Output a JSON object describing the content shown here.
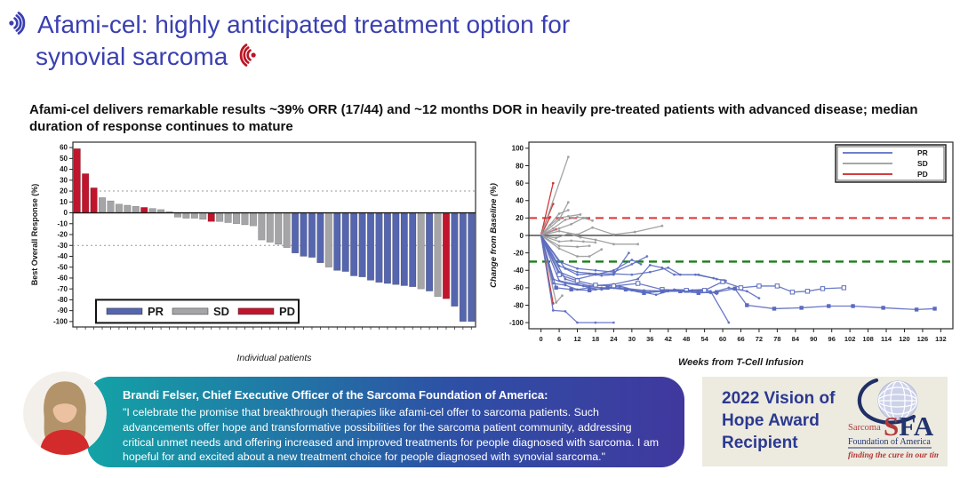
{
  "header": {
    "title_line1": "Afami-cel: highly anticipated treatment option for",
    "title_line2": "synovial sarcoma"
  },
  "icons": {
    "title_start": "sound-wave-open",
    "title_end": "sound-wave-close"
  },
  "subtitle": "Afami-cel delivers remarkable results ~39% ORR (17/44) and ~12 months DOR in heavily pre-treated patients with advanced disease; median duration of response continues to mature",
  "chart_data": [
    {
      "type": "bar",
      "title": "",
      "ylabel": "Best Overall Response (%)",
      "xlabel": "Individual patients",
      "ylim": [
        -105,
        65
      ],
      "yticks": [
        60,
        50,
        40,
        30,
        20,
        10,
        0,
        -10,
        -20,
        -30,
        -40,
        -50,
        -60,
        -70,
        -80,
        -90,
        -100
      ],
      "ref_lines": [
        {
          "y": 20,
          "color": "#9a9a9a",
          "dash": "2,3",
          "width": 1
        },
        {
          "y": -30,
          "color": "#9a9a9a",
          "dash": "2,3",
          "width": 1
        }
      ],
      "zero_line": {
        "color": "#1a1a1a",
        "width": 1.4
      },
      "colors": {
        "PR": "#5565AE",
        "SD": "#A5A5A7",
        "PD": "#C0152D"
      },
      "legend": [
        {
          "label": "PR",
          "group": "PR"
        },
        {
          "label": "SD",
          "group": "SD"
        },
        {
          "label": "PD",
          "group": "PD"
        }
      ],
      "bars": {
        "values": [
          59,
          36,
          23,
          14,
          11,
          8,
          7,
          6,
          5,
          4,
          3,
          1,
          -4,
          -5,
          -5,
          -6,
          -8,
          -8,
          -9,
          -10,
          -11,
          -12,
          -25,
          -27,
          -29,
          -32,
          -37,
          -40,
          -41,
          -46,
          -50,
          -53,
          -54,
          -58,
          -59,
          -62,
          -64,
          -65,
          -66,
          -67,
          -68,
          -70,
          -72,
          -77,
          -79,
          -86,
          -100,
          -100
        ],
        "groups": [
          "PD",
          "PD",
          "PD",
          "SD",
          "SD",
          "SD",
          "SD",
          "SD",
          "PD",
          "SD",
          "SD",
          "SD",
          "SD",
          "SD",
          "SD",
          "SD",
          "PD",
          "SD",
          "SD",
          "SD",
          "SD",
          "SD",
          "SD",
          "SD",
          "SD",
          "SD",
          "PR",
          "PR",
          "PR",
          "PR",
          "SD",
          "PR",
          "PR",
          "PR",
          "PR",
          "PR",
          "PR",
          "PR",
          "PR",
          "PR",
          "PR",
          "SD",
          "PR",
          "SD",
          "PD",
          "PR",
          "PR",
          "PR"
        ]
      }
    },
    {
      "type": "line",
      "title": "",
      "ylabel": "Change from Baseline (%)",
      "xlabel": "Weeks from T-Cell Infusion",
      "xlim": [
        -4,
        136
      ],
      "ylim": [
        -107,
        107
      ],
      "xticks": [
        0,
        6,
        12,
        18,
        24,
        30,
        36,
        42,
        48,
        54,
        60,
        66,
        72,
        78,
        84,
        90,
        96,
        102,
        108,
        114,
        120,
        126,
        132
      ],
      "yticks": [
        100,
        80,
        60,
        40,
        20,
        0,
        -20,
        -40,
        -60,
        -80,
        -100
      ],
      "ref_lines": [
        {
          "y": 20,
          "color": "#E03131",
          "dash": "9,6",
          "width": 2
        },
        {
          "y": -30,
          "color": "#1A7D1A",
          "dash": "9,6",
          "width": 2.4
        }
      ],
      "zero_line": {
        "color": "#2b2b2b",
        "width": 1.2
      },
      "colors": {
        "PR": "#5B6BC0",
        "SD": "#9A9A9C",
        "PD": "#CC2222"
      },
      "legend": [
        {
          "label": "PR",
          "group": "PR"
        },
        {
          "label": "SD",
          "group": "SD"
        },
        {
          "label": "PD",
          "group": "PD"
        }
      ],
      "series": [
        {
          "g": "PD",
          "p": [
            [
              0,
              0
            ],
            [
              4,
              60
            ]
          ]
        },
        {
          "g": "PD",
          "p": [
            [
              0,
              2
            ],
            [
              4,
              36
            ]
          ]
        },
        {
          "g": "PD",
          "p": [
            [
              0,
              0
            ],
            [
              3,
              21
            ]
          ]
        },
        {
          "g": "PD",
          "p": [
            [
              0,
              0
            ],
            [
              5,
              7
            ]
          ]
        },
        {
          "g": "PD",
          "p": [
            [
              0,
              0
            ],
            [
              4,
              -78
            ]
          ]
        },
        {
          "g": "SD",
          "p": [
            [
              0,
              0
            ],
            [
              9,
              90
            ]
          ]
        },
        {
          "g": "SD",
          "p": [
            [
              0,
              0
            ],
            [
              6,
              18
            ],
            [
              9,
              38
            ]
          ]
        },
        {
          "g": "SD",
          "p": [
            [
              0,
              0
            ],
            [
              6,
              25
            ],
            [
              9,
              29
            ]
          ]
        },
        {
          "g": "SD",
          "p": [
            [
              0,
              0
            ],
            [
              4,
              8
            ],
            [
              8,
              18
            ],
            [
              12,
              21
            ],
            [
              15,
              20
            ]
          ]
        },
        {
          "g": "SD",
          "p": [
            [
              0,
              0
            ],
            [
              6,
              8
            ],
            [
              10,
              13
            ],
            [
              14,
              20
            ],
            [
              17,
              17
            ]
          ]
        },
        {
          "g": "SD",
          "p": [
            [
              0,
              0
            ],
            [
              3,
              12
            ],
            [
              6,
              20
            ],
            [
              9,
              22
            ],
            [
              13,
              24
            ]
          ]
        },
        {
          "g": "SD",
          "p": [
            [
              0,
              0
            ],
            [
              6,
              5
            ],
            [
              12,
              1
            ],
            [
              17,
              9
            ],
            [
              24,
              1
            ],
            [
              31,
              4
            ],
            [
              40,
              11
            ]
          ]
        },
        {
          "g": "SD",
          "p": [
            [
              0,
              0
            ],
            [
              5,
              -3
            ],
            [
              9,
              2
            ],
            [
              13,
              -2
            ],
            [
              18,
              -5
            ],
            [
              24,
              -10
            ],
            [
              32,
              -10
            ]
          ]
        },
        {
          "g": "SD",
          "p": [
            [
              0,
              0
            ],
            [
              6,
              -7
            ],
            [
              10,
              -6
            ],
            [
              14,
              -7
            ],
            [
              18,
              -8
            ]
          ]
        },
        {
          "g": "SD",
          "p": [
            [
              0,
              0
            ],
            [
              6,
              -12
            ],
            [
              12,
              -13
            ],
            [
              16,
              -12
            ]
          ]
        },
        {
          "g": "SD",
          "p": [
            [
              0,
              0
            ],
            [
              6,
              -15
            ],
            [
              12,
              -24
            ],
            [
              16,
              -24
            ],
            [
              20,
              -16
            ]
          ]
        },
        {
          "g": "SD",
          "p": [
            [
              0,
              0
            ],
            [
              5,
              -77
            ],
            [
              7,
              -69
            ]
          ]
        },
        {
          "g": "PR",
          "p": [
            [
              0,
              0
            ],
            [
              4,
              -55
            ],
            [
              8,
              -57
            ],
            [
              12,
              -62
            ],
            [
              16,
              -60
            ],
            [
              20,
              -62
            ],
            [
              24,
              -60
            ],
            [
              30,
              -63
            ],
            [
              36,
              -65
            ],
            [
              42,
              -63
            ],
            [
              48,
              -63
            ],
            [
              54,
              -62
            ],
            [
              58,
              -67
            ]
          ]
        },
        {
          "g": "PR",
          "p": [
            [
              0,
              0
            ],
            [
              4,
              -86
            ],
            [
              8,
              -87
            ],
            [
              12,
              -100
            ],
            [
              18,
              -100
            ],
            [
              24,
              -100
            ]
          ]
        },
        {
          "g": "PR",
          "p": [
            [
              0,
              0
            ],
            [
              8,
              -38
            ],
            [
              12,
              -45
            ],
            [
              16,
              -44
            ],
            [
              20,
              -46
            ],
            [
              24,
              -45
            ],
            [
              29,
              -20
            ]
          ]
        },
        {
          "g": "PR",
          "p": [
            [
              0,
              0
            ],
            [
              6,
              -30
            ],
            [
              12,
              -38
            ],
            [
              18,
              -40
            ],
            [
              24,
              -42
            ],
            [
              30,
              -33
            ],
            [
              35,
              -24
            ]
          ]
        },
        {
          "g": "PR",
          "p": [
            [
              0,
              0
            ],
            [
              6,
              -42
            ],
            [
              12,
              -50
            ],
            [
              18,
              -45
            ],
            [
              24,
              -40
            ],
            [
              30,
              -28
            ],
            [
              33,
              -33
            ]
          ]
        },
        {
          "g": "PR",
          "p": [
            [
              0,
              0
            ],
            [
              8,
              -50
            ],
            [
              16,
              -58
            ],
            [
              24,
              -56
            ],
            [
              32,
              -50
            ],
            [
              36,
              -34
            ],
            [
              40,
              -37
            ],
            [
              44,
              -45
            ],
            [
              51,
              -45
            ],
            [
              57,
              -49
            ]
          ]
        },
        {
          "g": "PR",
          "p": [
            [
              0,
              0
            ],
            [
              6,
              -52
            ],
            [
              12,
              -56
            ],
            [
              18,
              -62
            ],
            [
              26,
              -58
            ],
            [
              32,
              -64
            ],
            [
              38,
              -68
            ],
            [
              44,
              -62
            ],
            [
              50,
              -63
            ],
            [
              56,
              -64
            ],
            [
              62,
              -100
            ]
          ]
        },
        {
          "g": "PR",
          "m": "open",
          "p": [
            [
              0,
              0
            ],
            [
              6,
              -45
            ],
            [
              12,
              -52
            ],
            [
              18,
              -57
            ],
            [
              24,
              -58
            ],
            [
              32,
              -55
            ],
            [
              40,
              -62
            ],
            [
              48,
              -63
            ],
            [
              54,
              -63
            ],
            [
              60,
              -53
            ],
            [
              66,
              -60
            ],
            [
              72,
              -58
            ],
            [
              78,
              -58
            ],
            [
              83,
              -65
            ],
            [
              88,
              -64
            ],
            [
              93,
              -61
            ],
            [
              100,
              -60
            ]
          ]
        },
        {
          "g": "PR",
          "p": [
            [
              0,
              0
            ],
            [
              4,
              -50
            ],
            [
              8,
              -55
            ],
            [
              14,
              -58
            ],
            [
              20,
              -60
            ],
            [
              26,
              -60
            ],
            [
              34,
              -63
            ],
            [
              42,
              -64
            ],
            [
              50,
              -64
            ],
            [
              56,
              -66
            ],
            [
              62,
              -60
            ],
            [
              68,
              -64
            ],
            [
              72,
              -72
            ]
          ]
        },
        {
          "g": "PR",
          "m": "square",
          "p": [
            [
              0,
              0
            ],
            [
              5,
              -60
            ],
            [
              10,
              -62
            ],
            [
              16,
              -63
            ],
            [
              22,
              -60
            ],
            [
              28,
              -62
            ],
            [
              34,
              -66
            ],
            [
              40,
              -64
            ],
            [
              46,
              -64
            ],
            [
              52,
              -66
            ],
            [
              58,
              -65
            ],
            [
              64,
              -61
            ],
            [
              68,
              -80
            ],
            [
              77,
              -84
            ],
            [
              86,
              -83
            ],
            [
              95,
              -81
            ],
            [
              103,
              -81
            ],
            [
              113,
              -83
            ],
            [
              124,
              -85
            ],
            [
              130,
              -84
            ]
          ]
        },
        {
          "g": "PR",
          "p": [
            [
              0,
              0
            ],
            [
              6,
              -35
            ],
            [
              12,
              -42
            ],
            [
              18,
              -44
            ],
            [
              24,
              -44
            ],
            [
              30,
              -45
            ],
            [
              36,
              -42
            ],
            [
              42,
              -37
            ],
            [
              46,
              -45
            ],
            [
              52,
              -45
            ],
            [
              58,
              -50
            ],
            [
              61,
              -52
            ]
          ]
        }
      ]
    }
  ],
  "quote": {
    "author_line": "Brandi Felser, Chief Executive Officer of the Sarcoma Foundation of America:",
    "text": "\"I celebrate the promise that breakthrough therapies like afami-cel offer to sarcoma patients. Such advancements offer hope and transformative possibilities for the sarcoma patient community, addressing critical unmet needs and offering increased and improved treatments for people diagnosed with sarcoma. I am hopeful for and excited about a new treatment choice for people diagnosed with synovial sarcoma.\""
  },
  "award": {
    "lines": [
      "2022 Vision of",
      "Hope Award",
      "Recipient"
    ]
  },
  "logo": {
    "sarcoma": "Sarcoma",
    "s": "S",
    "fa": "FA",
    "foundation": "Foundation of America",
    "tagline": "finding the cure in our time"
  }
}
